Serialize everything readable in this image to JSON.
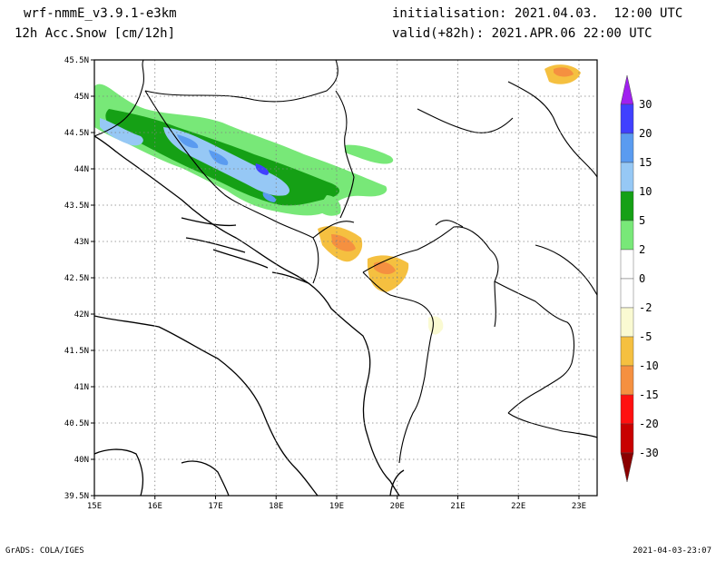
{
  "header": {
    "model": "wrf-nmmE_v3.9.1-e3km",
    "variable": "12h Acc.Snow [cm/12h]",
    "initialisation": "initialisation: 2021.04.03.  12:00 UTC",
    "valid": "valid(+82h): 2021.APR.06 22:00 UTC"
  },
  "map": {
    "lon_ticks": [
      "15E",
      "16E",
      "17E",
      "18E",
      "19E",
      "20E",
      "21E",
      "22E",
      "23E"
    ],
    "lat_ticks": [
      "45.5N",
      "45N",
      "44.5N",
      "44N",
      "43.5N",
      "43N",
      "42.5N",
      "42N",
      "41.5N",
      "41N",
      "40.5N",
      "40N",
      "39.5N"
    ],
    "lon_range": [
      15,
      23.3
    ],
    "lat_range": [
      39.5,
      45.5
    ],
    "grid": "dotted"
  },
  "colorbar": {
    "labels": [
      "30",
      "20",
      "15",
      "10",
      "5",
      "2",
      "0",
      "-2",
      "-5",
      "-10",
      "-15",
      "-20",
      "-30"
    ],
    "colors": [
      "#a020f0",
      "#4040ff",
      "#5a9bf0",
      "#96c8f5",
      "#15a015",
      "#78e878",
      "#ffffff",
      "#ffffff",
      "#fafad2",
      "#f5c040",
      "#f59040",
      "#ff1010",
      "#c80000",
      "#8b0000"
    ]
  },
  "footer": {
    "left": "GrADS: COLA/IGES",
    "right": "2021-04-03-23:07"
  }
}
